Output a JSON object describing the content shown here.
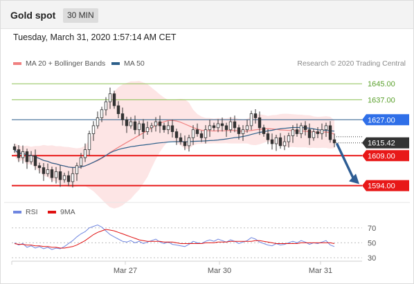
{
  "header": {
    "title": "Gold spot",
    "timeframe": "30 MIN"
  },
  "datetime": "Tuesday, March 31, 2020 1:57:14 AM CET",
  "legend": {
    "items": [
      {
        "label": "MA 20 + Bollinger Bands",
        "color": "#f08080"
      },
      {
        "label": "MA 50",
        "color": "#2c5f8a"
      }
    ],
    "credit": "Research © 2020 Trading Central"
  },
  "rsi_legend": {
    "items": [
      {
        "label": "RSI",
        "color": "#6f86e0"
      },
      {
        "label": "9MA",
        "color": "#e01010"
      }
    ]
  },
  "colors": {
    "resistance": "#8cc152",
    "pivot": "#2c5f8a",
    "support": "#e81818",
    "candle_up": "#ffffff",
    "candle_down": "#333333",
    "bollinger_fill": "#fde0e0",
    "arrow": "#2e5d94",
    "price_label_blue": "#2f6fe8",
    "price_label_current": "#333333"
  },
  "chart_data": [
    {
      "type": "candlestick",
      "timeframe": "30 MIN",
      "ylim": [
        1588,
        1652
      ],
      "x_tick_labels": [
        "Mar 27",
        "Mar 30",
        "Mar 31"
      ],
      "levels": [
        {
          "label": "1645.00",
          "value": 1645.0,
          "kind": "resistance"
        },
        {
          "label": "1637.00",
          "value": 1637.0,
          "kind": "resistance"
        },
        {
          "label": "1627.00",
          "value": 1627.0,
          "kind": "pivot"
        },
        {
          "label": "1609.00",
          "value": 1609.0,
          "kind": "support"
        },
        {
          "label": "1594.00",
          "value": 1594.0,
          "kind": "support"
        }
      ],
      "current_price": {
        "label": "1615.42",
        "value": 1615.42
      },
      "series": [
        {
          "name": "MA 20 + Bollinger Bands"
        },
        {
          "name": "MA 50"
        }
      ],
      "closes": [
        1612,
        1608,
        1611,
        1606,
        1609,
        1604,
        1603,
        1600,
        1602,
        1598,
        1601,
        1597,
        1599,
        1596,
        1600,
        1604,
        1608,
        1612,
        1620,
        1624,
        1628,
        1632,
        1636,
        1640,
        1634,
        1630,
        1627,
        1624,
        1626,
        1622,
        1625,
        1621,
        1623,
        1624,
        1626,
        1624,
        1622,
        1624,
        1621,
        1618,
        1616,
        1614,
        1618,
        1622,
        1620,
        1618,
        1622,
        1624,
        1623,
        1625,
        1624,
        1622,
        1626,
        1623,
        1620,
        1622,
        1624,
        1630,
        1628,
        1623,
        1620,
        1617,
        1615,
        1618,
        1614,
        1616,
        1619,
        1622,
        1620,
        1624,
        1622,
        1618,
        1621,
        1620,
        1622,
        1624,
        1617,
        1615.42
      ],
      "rsi": {
        "ylim": [
          30,
          80
        ],
        "ticks": [
          {
            "label": "70",
            "value": 70
          },
          {
            "label": "50",
            "value": 50
          },
          {
            "label": "30",
            "value": 30
          }
        ],
        "values": [
          50,
          47,
          49,
          44,
          46,
          43,
          45,
          42,
          44,
          41,
          43,
          42,
          45,
          49,
          53,
          58,
          62,
          65,
          70,
          72,
          74,
          71,
          66,
          61,
          58,
          55,
          52,
          51,
          53,
          50,
          52,
          49,
          51,
          53,
          55,
          51,
          49,
          51,
          48,
          47,
          46,
          45,
          48,
          52,
          50,
          49,
          52,
          54,
          52,
          55,
          53,
          51,
          54,
          52,
          49,
          51,
          53,
          57,
          55,
          51,
          49,
          47,
          46,
          49,
          47,
          48,
          50,
          52,
          50,
          53,
          51,
          48,
          50,
          49,
          51,
          53,
          47,
          45
        ],
        "ma9": [
          49,
          48,
          48,
          47,
          47,
          46,
          46,
          45,
          45,
          44,
          44,
          43,
          43,
          44,
          45,
          47,
          50,
          53,
          57,
          61,
          64,
          66,
          68,
          67,
          66,
          64,
          62,
          60,
          58,
          56,
          54,
          53,
          52,
          52,
          52,
          52,
          51,
          51,
          51,
          50,
          49,
          49,
          49,
          49,
          49,
          49,
          50,
          50,
          50,
          51,
          51,
          51,
          52,
          52,
          52,
          52,
          52,
          52,
          53,
          53,
          52,
          51,
          50,
          49,
          49,
          49,
          49,
          49,
          49,
          50,
          50,
          50,
          50,
          50,
          50,
          50,
          50,
          49
        ]
      }
    }
  ]
}
